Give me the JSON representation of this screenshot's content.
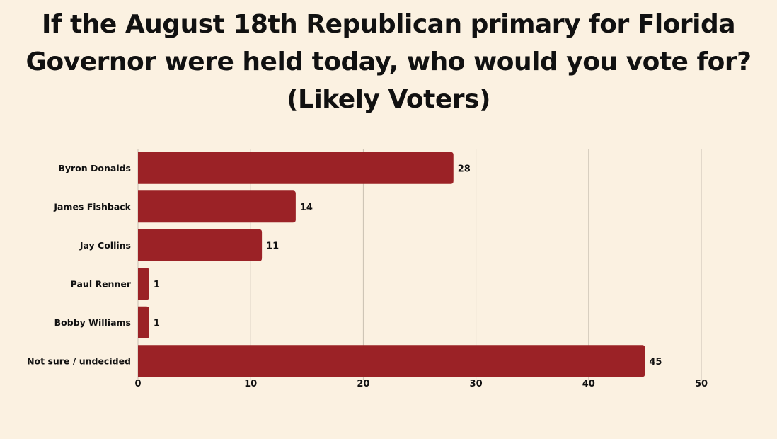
{
  "title_lines": [
    "If the August 18th Republican primary for Florida",
    "Governor were held today, who would you vote for?",
    "(Likely Voters)"
  ],
  "colors": {
    "background": "#fbf1e1",
    "bar": "#9b2226",
    "text": "#111111"
  },
  "chart_data": {
    "type": "bar",
    "orientation": "horizontal",
    "title": "If the August 18th Republican primary for Florida Governor were held today, who would you vote for? (Likely Voters)",
    "categories": [
      "Byron Donalds",
      "James Fishback",
      "Jay Collins",
      "Paul Renner",
      "Bobby Williams",
      "Not sure / undecided"
    ],
    "values": [
      28,
      14,
      11,
      1,
      1,
      45
    ],
    "xlim": [
      0,
      50
    ],
    "xticks": [
      0,
      10,
      20,
      30,
      40,
      50
    ],
    "grid": true,
    "data_labels": true,
    "legend": "none"
  }
}
